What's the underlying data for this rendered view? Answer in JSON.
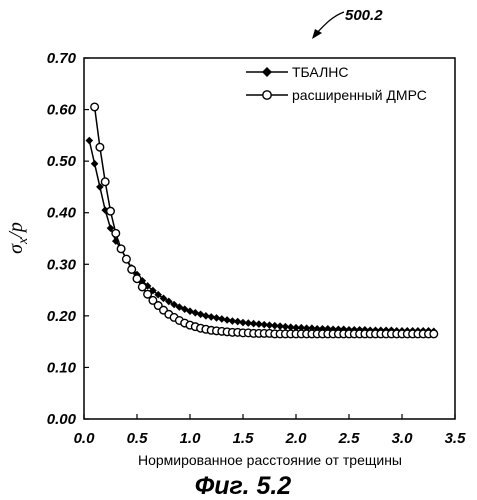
{
  "figure_ref": "500.2",
  "caption": "Фиг. 5.2",
  "chart_data": {
    "type": "line",
    "title": "",
    "xlabel": "Нормированное расстояние от трещины",
    "ylabel_main": "σ",
    "ylabel_sub": "x",
    "ylabel_tail": "/p",
    "xlim": [
      0.0,
      3.5
    ],
    "ylim": [
      0.0,
      0.7
    ],
    "xticks": [
      "0.0",
      "0.5",
      "1.0",
      "1.5",
      "2.0",
      "2.5",
      "3.0",
      "3.5"
    ],
    "yticks": [
      "0.00",
      "0.10",
      "0.20",
      "0.30",
      "0.40",
      "0.50",
      "0.60",
      "0.70"
    ],
    "grid": false,
    "legend_position": "top-right",
    "series": [
      {
        "name": "ТБАЛНС",
        "marker": "filled-diamond",
        "color": "#000000",
        "x": [
          0.05,
          0.1,
          0.15,
          0.2,
          0.25,
          0.3,
          0.35,
          0.4,
          0.45,
          0.5,
          0.55,
          0.6,
          0.65,
          0.7,
          0.75,
          0.8,
          0.85,
          0.9,
          0.95,
          1.0,
          1.05,
          1.1,
          1.15,
          1.2,
          1.25,
          1.3,
          1.35,
          1.4,
          1.45,
          1.5,
          1.55,
          1.6,
          1.65,
          1.7,
          1.75,
          1.8,
          1.85,
          1.9,
          1.95,
          2.0,
          2.05,
          2.1,
          2.15,
          2.2,
          2.25,
          2.3,
          2.35,
          2.4,
          2.45,
          2.5,
          2.55,
          2.6,
          2.65,
          2.7,
          2.75,
          2.8,
          2.85,
          2.9,
          2.95,
          3.0,
          3.05,
          3.1,
          3.15,
          3.2,
          3.25,
          3.3
        ],
        "y": [
          0.54,
          0.495,
          0.45,
          0.405,
          0.37,
          0.345,
          0.33,
          0.31,
          0.293,
          0.28,
          0.268,
          0.258,
          0.249,
          0.241,
          0.234,
          0.228,
          0.222,
          0.217,
          0.213,
          0.209,
          0.206,
          0.203,
          0.2,
          0.198,
          0.196,
          0.194,
          0.192,
          0.19,
          0.189,
          0.187,
          0.186,
          0.185,
          0.184,
          0.183,
          0.182,
          0.181,
          0.18,
          0.179,
          0.178,
          0.177,
          0.177,
          0.176,
          0.176,
          0.175,
          0.175,
          0.175,
          0.174,
          0.174,
          0.174,
          0.173,
          0.173,
          0.173,
          0.173,
          0.172,
          0.172,
          0.172,
          0.172,
          0.172,
          0.171,
          0.171,
          0.171,
          0.171,
          0.171,
          0.171,
          0.171,
          0.17
        ]
      },
      {
        "name": "расширенный ДМРС",
        "marker": "open-circle",
        "color": "#000000",
        "x": [
          0.1,
          0.15,
          0.2,
          0.25,
          0.3,
          0.35,
          0.4,
          0.45,
          0.5,
          0.55,
          0.6,
          0.65,
          0.7,
          0.75,
          0.8,
          0.85,
          0.9,
          0.95,
          1.0,
          1.05,
          1.1,
          1.15,
          1.2,
          1.25,
          1.3,
          1.35,
          1.4,
          1.45,
          1.5,
          1.55,
          1.6,
          1.65,
          1.7,
          1.75,
          1.8,
          1.85,
          1.9,
          1.95,
          2.0,
          2.05,
          2.1,
          2.15,
          2.2,
          2.25,
          2.3,
          2.35,
          2.4,
          2.45,
          2.5,
          2.55,
          2.6,
          2.65,
          2.7,
          2.75,
          2.8,
          2.85,
          2.9,
          2.95,
          3.0,
          3.05,
          3.1,
          3.15,
          3.2,
          3.25,
          3.3
        ],
        "y": [
          0.605,
          0.527,
          0.46,
          0.403,
          0.36,
          0.33,
          0.31,
          0.29,
          0.272,
          0.256,
          0.242,
          0.23,
          0.22,
          0.211,
          0.203,
          0.197,
          0.191,
          0.186,
          0.182,
          0.179,
          0.176,
          0.174,
          0.172,
          0.171,
          0.17,
          0.169,
          0.168,
          0.168,
          0.167,
          0.167,
          0.166,
          0.166,
          0.166,
          0.166,
          0.165,
          0.165,
          0.165,
          0.165,
          0.165,
          0.165,
          0.165,
          0.165,
          0.165,
          0.165,
          0.165,
          0.165,
          0.165,
          0.165,
          0.165,
          0.165,
          0.165,
          0.165,
          0.165,
          0.165,
          0.165,
          0.165,
          0.165,
          0.165,
          0.165,
          0.165,
          0.165,
          0.165,
          0.165,
          0.165,
          0.165
        ]
      }
    ]
  }
}
